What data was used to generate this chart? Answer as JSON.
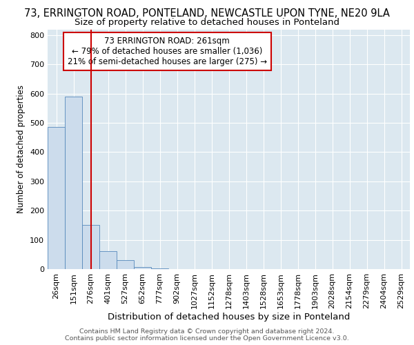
{
  "title": "73, ERRINGTON ROAD, PONTELAND, NEWCASTLE UPON TYNE, NE20 9LA",
  "subtitle": "Size of property relative to detached houses in Ponteland",
  "xlabel": "Distribution of detached houses by size in Ponteland",
  "ylabel": "Number of detached properties",
  "bin_labels": [
    "26sqm",
    "151sqm",
    "276sqm",
    "401sqm",
    "527sqm",
    "652sqm",
    "777sqm",
    "902sqm",
    "1027sqm",
    "1152sqm",
    "1278sqm",
    "1403sqm",
    "1528sqm",
    "1653sqm",
    "1778sqm",
    "1903sqm",
    "2028sqm",
    "2154sqm",
    "2279sqm",
    "2404sqm",
    "2529sqm"
  ],
  "bar_heights": [
    485,
    590,
    150,
    62,
    30,
    8,
    3,
    0,
    0,
    0,
    0,
    0,
    0,
    0,
    0,
    0,
    0,
    0,
    0,
    0,
    0
  ],
  "bar_color": "#ccdcec",
  "bar_edge_color": "#5588bb",
  "property_line_x": 2.0,
  "property_line_color": "#cc0000",
  "annotation_text": "73 ERRINGTON ROAD: 261sqm\n← 79% of detached houses are smaller (1,036)\n21% of semi-detached houses are larger (275) →",
  "annotation_box_color": "#ffffff",
  "annotation_box_edge": "#cc0000",
  "ylim": [
    0,
    820
  ],
  "yticks": [
    0,
    100,
    200,
    300,
    400,
    500,
    600,
    700,
    800
  ],
  "footer_line1": "Contains HM Land Registry data © Crown copyright and database right 2024.",
  "footer_line2": "Contains public sector information licensed under the Open Government Licence v3.0.",
  "fig_background": "#ffffff",
  "plot_background": "#dce8f0",
  "grid_color": "#ffffff",
  "title_fontsize": 10.5,
  "subtitle_fontsize": 9.5,
  "xlabel_fontsize": 9.5,
  "ylabel_fontsize": 8.5,
  "tick_fontsize": 8,
  "annotation_fontsize": 8.5,
  "footer_fontsize": 6.8
}
